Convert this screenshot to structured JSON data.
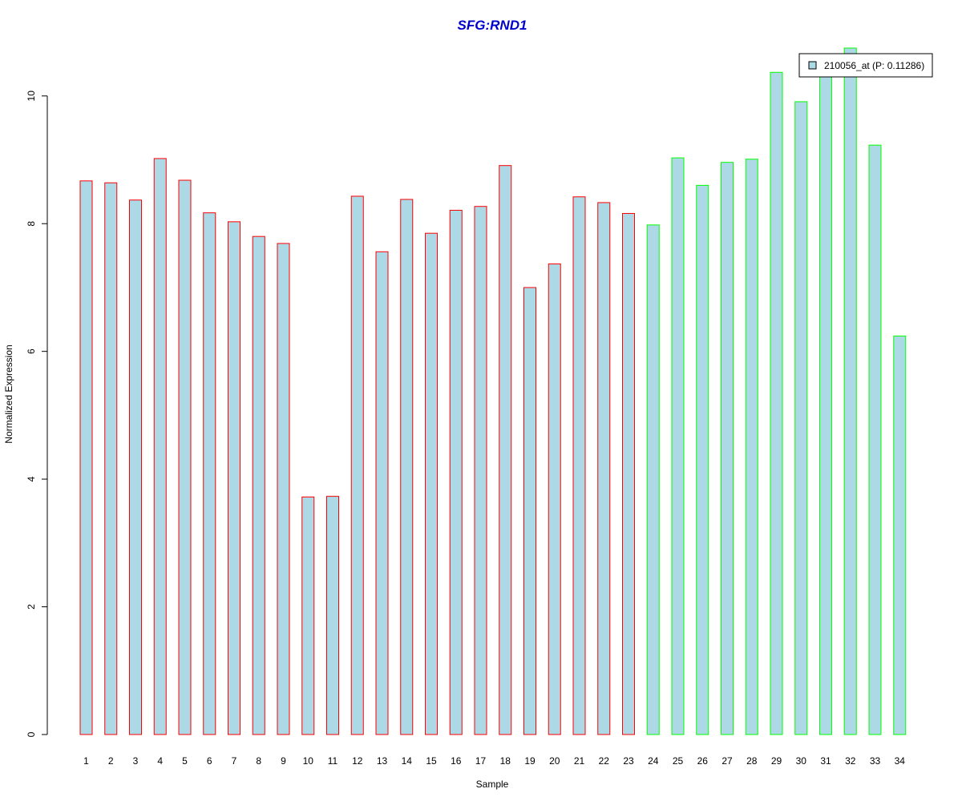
{
  "chart_data": {
    "type": "bar",
    "title": "SFG:RND1",
    "xlabel": "Sample",
    "ylabel": "Normalized Expression",
    "ylim": [
      0,
      10.75
    ],
    "yticks": [
      0,
      2,
      4,
      6,
      8,
      10
    ],
    "categories": [
      "1",
      "2",
      "3",
      "4",
      "5",
      "6",
      "7",
      "8",
      "9",
      "10",
      "11",
      "12",
      "13",
      "14",
      "15",
      "16",
      "17",
      "18",
      "19",
      "20",
      "21",
      "22",
      "23",
      "24",
      "25",
      "26",
      "27",
      "28",
      "29",
      "30",
      "31",
      "32",
      "33",
      "34"
    ],
    "series": [
      {
        "name": "210056_at (P: 0.11286)",
        "values": [
          8.67,
          8.64,
          8.37,
          9.02,
          8.68,
          8.17,
          8.03,
          7.8,
          7.69,
          3.72,
          3.73,
          8.43,
          7.56,
          8.38,
          7.85,
          8.21,
          8.27,
          8.91,
          7.0,
          7.37,
          8.42,
          8.33,
          8.16,
          7.98,
          9.03,
          8.6,
          8.96,
          9.01,
          10.37,
          9.91,
          10.3,
          10.75,
          9.23,
          6.24
        ]
      }
    ],
    "group_of_bar": [
      "A",
      "A",
      "A",
      "A",
      "A",
      "A",
      "A",
      "A",
      "A",
      "A",
      "A",
      "A",
      "A",
      "A",
      "A",
      "A",
      "A",
      "A",
      "A",
      "A",
      "A",
      "A",
      "A",
      "B",
      "B",
      "B",
      "B",
      "B",
      "B",
      "B",
      "B",
      "B",
      "B",
      "B"
    ],
    "colors": {
      "bar_fill": "#add8e6",
      "group_A_border": "#ff0000",
      "group_B_border": "#00ff00",
      "title": "#0000cc",
      "axis": "#000000"
    },
    "grid": false,
    "legend_position": "top-right"
  }
}
